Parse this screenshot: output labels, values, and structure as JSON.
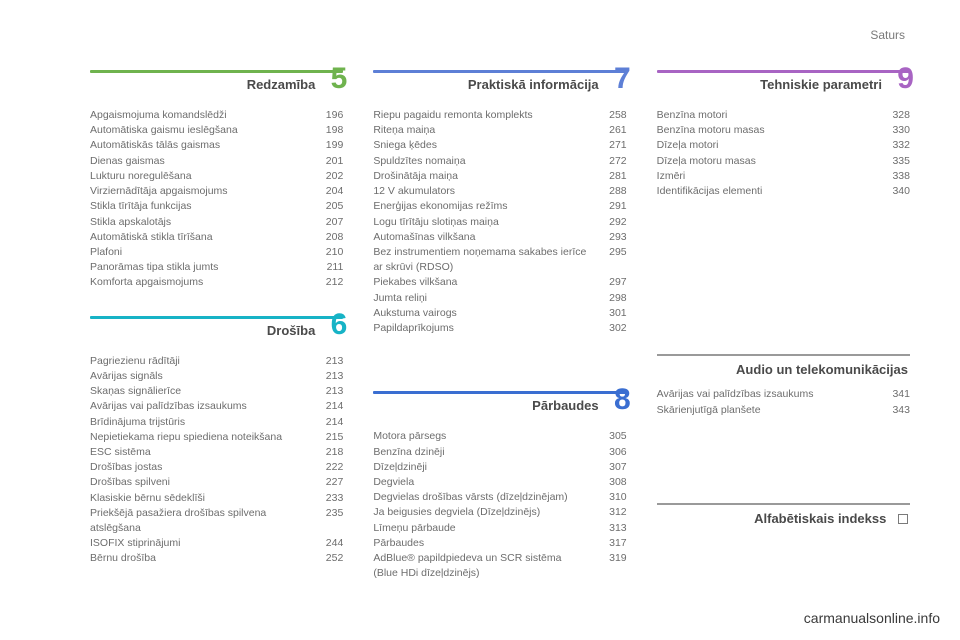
{
  "header": {
    "label": "Saturs"
  },
  "footer": {
    "link": "carmanualsonline.info"
  },
  "sections": {
    "s5": {
      "title": "Redzamība",
      "number": "5",
      "accent": "#6fb34e",
      "items": [
        {
          "label": "Apgaismojuma komandslēdži",
          "page": "196"
        },
        {
          "label": "Automātiska gaismu ieslēgšana",
          "page": "198"
        },
        {
          "label": "Automātiskās tālās gaismas",
          "page": "199"
        },
        {
          "label": "Dienas gaismas",
          "page": "201"
        },
        {
          "label": "Lukturu noregulēšana",
          "page": "202"
        },
        {
          "label": "Virziernādītāja apgaismojums",
          "page": "204"
        },
        {
          "label": "Stikla tīrītāja funkcijas",
          "page": "205"
        },
        {
          "label": "Stikla apskalotājs",
          "page": "207"
        },
        {
          "label": "Automātiskā stikla tīrīšana",
          "page": "208"
        },
        {
          "label": "Plafoni",
          "page": "210"
        },
        {
          "label": "Panorāmas tipa stikla jumts",
          "page": "211"
        },
        {
          "label": "Komforta apgaismojums",
          "page": "212"
        }
      ]
    },
    "s6": {
      "title": "Drošība",
      "number": "6",
      "accent": "#17b3c6",
      "items": [
        {
          "label": "Pagriezienu rādītāji",
          "page": "213"
        },
        {
          "label": "Avārijas signāls",
          "page": "213"
        },
        {
          "label": "Skaņas signālierīce",
          "page": "213"
        },
        {
          "label": "Avārijas vai palīdzības izsaukums",
          "page": "214"
        },
        {
          "label": "Brīdinājuma trijstūris",
          "page": "214"
        },
        {
          "label": "Nepietiekama riepu spiediena noteikšana",
          "page": "215"
        },
        {
          "label": "ESC sistēma",
          "page": "218"
        },
        {
          "label": "Drošības jostas",
          "page": "222"
        },
        {
          "label": "Drošības spilveni",
          "page": "227"
        },
        {
          "label": "Klasiskie bērnu sēdeklīši",
          "page": "233"
        },
        {
          "label": "Priekšējā pasažiera drošības spilvena atslēgšana",
          "page": "235"
        },
        {
          "label": "ISOFIX stiprinājumi",
          "page": "244"
        },
        {
          "label": "Bērnu drošība",
          "page": "252"
        }
      ]
    },
    "s7": {
      "title": "Praktiskā informācija",
      "number": "7",
      "accent": "#5d7fd6",
      "items": [
        {
          "label": "Riepu pagaidu remonta komplekts",
          "page": "258"
        },
        {
          "label": "Riteņa maiņa",
          "page": "261"
        },
        {
          "label": "Sniega ķēdes",
          "page": "271"
        },
        {
          "label": "Spuldzītes nomaiņa",
          "page": "272"
        },
        {
          "label": "Drošinātāja maiņa",
          "page": "281"
        },
        {
          "label": "12 V akumulators",
          "page": "288"
        },
        {
          "label": "Enerģijas ekonomijas režīms",
          "page": "291"
        },
        {
          "label": "Logu tīrītāju slotiņas maiņa",
          "page": "292"
        },
        {
          "label": "Automašīnas vilkšana",
          "page": "293"
        },
        {
          "label": "Bez instrumentiem noņemama sakabes ierīce ar skrūvi (RDSO)",
          "page": "295"
        },
        {
          "label": "Piekabes vilkšana",
          "page": "297"
        },
        {
          "label": "Jumta reliņi",
          "page": "298"
        },
        {
          "label": "Aukstuma vairogs",
          "page": "301"
        },
        {
          "label": "Papildaprīkojums",
          "page": "302"
        }
      ]
    },
    "s8": {
      "title": "Pārbaudes",
      "number": "8",
      "accent": "#3a6ed1",
      "items": [
        {
          "label": "Motora pārsegs",
          "page": "305"
        },
        {
          "label": "Benzīna dzinēji",
          "page": "306"
        },
        {
          "label": "Dīzeļdzinēji",
          "page": "307"
        },
        {
          "label": "Degviela",
          "page": "308"
        },
        {
          "label": "Degvielas drošības vārsts (dīzeļdzinējam)",
          "page": "310"
        },
        {
          "label": "Ja beigusies degviela (Dīzeļdzinējs)",
          "page": "312"
        },
        {
          "label": "Līmeņu pārbaude",
          "page": "313"
        },
        {
          "label": "Pārbaudes",
          "page": "317"
        },
        {
          "label": "AdBlue® papildpiedeva un SCR sistēma (Blue HDi dīzeļdzinējs)",
          "page": "319"
        }
      ]
    },
    "s9": {
      "title": "Tehniskie parametri",
      "number": "9",
      "accent": "#a864c3",
      "items": [
        {
          "label": "Benzīna motori",
          "page": "328"
        },
        {
          "label": "Benzīna motoru masas",
          "page": "330"
        },
        {
          "label": "Dīzeļa motori",
          "page": "332"
        },
        {
          "label": "Dīzeļa motoru masas",
          "page": "335"
        },
        {
          "label": "Izmēri",
          "page": "338"
        },
        {
          "label": "Identifikācijas elementi",
          "page": "340"
        }
      ]
    },
    "audio": {
      "title": "Audio un telekomunikācijas",
      "items": [
        {
          "label": "Avārijas vai palīdzības izsaukums",
          "page": "341"
        },
        {
          "label": "Skārienjutīgā planšete",
          "page": "343"
        }
      ]
    },
    "index": {
      "title": "Alfabētiskais indekss"
    }
  }
}
